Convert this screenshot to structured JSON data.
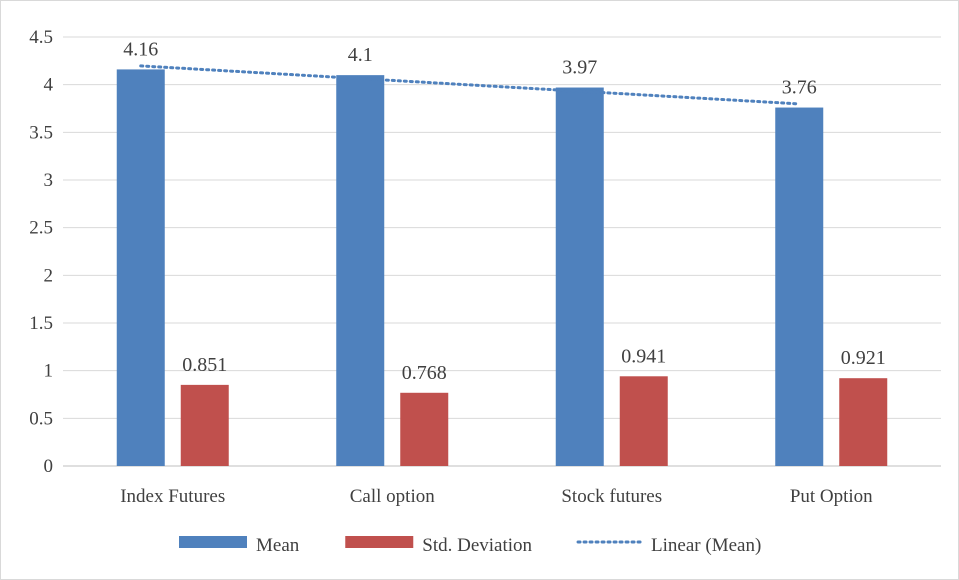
{
  "chart_data": {
    "type": "bar",
    "categories": [
      "Index Futures",
      "Call option",
      "Stock futures",
      "Put Option"
    ],
    "series": [
      {
        "name": "Mean",
        "values": [
          4.16,
          4.1,
          3.97,
          3.76
        ],
        "color": "#4f81bd"
      },
      {
        "name": "Std. Deviation",
        "values": [
          0.851,
          0.768,
          0.941,
          0.921
        ],
        "color": "#c0504d"
      }
    ],
    "trendline": {
      "name": "Linear (Mean)",
      "of_series": "Mean",
      "kind": "linear",
      "color": "#4f81bd",
      "style": "dotted"
    },
    "data_labels": [
      [
        "4.16",
        "4.1",
        "3.97",
        "3.76"
      ],
      [
        "0.851",
        "0.768",
        "0.941",
        "0.921"
      ]
    ],
    "y_ticks": [
      "0",
      "0.5",
      "1",
      "1.5",
      "2",
      "2.5",
      "3",
      "3.5",
      "4",
      "4.5"
    ],
    "ylim": [
      0,
      4.5
    ],
    "grid": true,
    "legend_position": "bottom",
    "title": "",
    "xlabel": "",
    "ylabel": ""
  }
}
